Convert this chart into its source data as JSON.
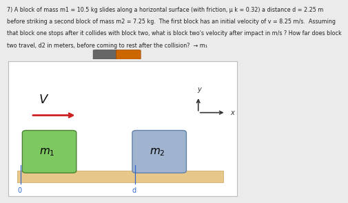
{
  "bg_color": "#ebebeb",
  "diagram_bg": "#ffffff",
  "text_lines": [
    "7) A block of mass m1 = 10.5 kg slides along a horizontal surface (with friction, μ k = 0.32) a distance d = 2.25 m",
    "before striking a second block of mass m2 = 7.25 kg.  The first block has an initial velocity of v = 8.25 m/s.  Assuming",
    "that block one stops after it collides with block two, what is block two's velocity after impact in m/s ? How far does block",
    "two travel, d2 in meters, before coming to rest after the collision?  → m₁"
  ],
  "text_fontsize": 5.8,
  "icon1_color": "#666666",
  "icon2_color": "#cc6600",
  "floor_color": "#e8c88a",
  "floor_edge": "#c8a060",
  "block1_color": "#7dc860",
  "block1_edge": "#4a8030",
  "block2_color": "#a0b4d0",
  "block2_edge": "#6080a8",
  "arrow_color": "#cc2020",
  "diagram_border": "#bbbbbb",
  "origin_color": "#3366cc",
  "d_color": "#3366cc",
  "axis_color": "#333333"
}
